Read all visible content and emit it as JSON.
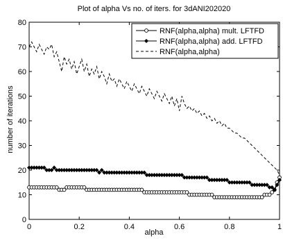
{
  "chart_data": {
    "type": "line",
    "title": "Plot of alpha Vs no. of iters. for 3dANI202020",
    "xlabel": "alpha",
    "ylabel": "number of iterations",
    "xlim": [
      0,
      1
    ],
    "ylim": [
      0,
      80
    ],
    "x_ticks": [
      0,
      0.2,
      0.4,
      0.6,
      0.8,
      1
    ],
    "x_tick_labels": [
      "0",
      "0.2",
      "0.4",
      "0.6",
      "0.8",
      "1"
    ],
    "y_ticks": [
      0,
      10,
      20,
      30,
      40,
      50,
      60,
      70,
      80
    ],
    "y_tick_labels": [
      "0",
      "10",
      "20",
      "30",
      "40",
      "50",
      "60",
      "70",
      "80"
    ],
    "grid": false,
    "legend_position": "top-right",
    "series": [
      {
        "name": "RNF(alpha,alpha) mult. LFTFD",
        "style": "solid",
        "marker": "circle",
        "color": "#000000",
        "x": [
          0,
          0.01,
          0.02,
          0.03,
          0.04,
          0.05,
          0.06,
          0.07,
          0.08,
          0.09,
          0.1,
          0.11,
          0.12,
          0.13,
          0.14,
          0.15,
          0.16,
          0.17,
          0.18,
          0.19,
          0.2,
          0.21,
          0.22,
          0.23,
          0.24,
          0.25,
          0.26,
          0.27,
          0.28,
          0.29,
          0.3,
          0.31,
          0.32,
          0.33,
          0.34,
          0.35,
          0.36,
          0.37,
          0.38,
          0.39,
          0.4,
          0.41,
          0.42,
          0.43,
          0.44,
          0.45,
          0.46,
          0.47,
          0.48,
          0.49,
          0.5,
          0.51,
          0.52,
          0.53,
          0.54,
          0.55,
          0.56,
          0.57,
          0.58,
          0.59,
          0.6,
          0.61,
          0.62,
          0.63,
          0.64,
          0.65,
          0.66,
          0.67,
          0.68,
          0.69,
          0.7,
          0.71,
          0.72,
          0.73,
          0.74,
          0.75,
          0.76,
          0.77,
          0.78,
          0.79,
          0.8,
          0.81,
          0.82,
          0.83,
          0.84,
          0.85,
          0.86,
          0.87,
          0.88,
          0.89,
          0.9,
          0.91,
          0.92,
          0.93,
          0.94,
          0.95,
          0.96,
          0.97,
          0.98,
          0.99,
          1.0
        ],
        "y": [
          13,
          13,
          13,
          13,
          13,
          13,
          13,
          13,
          13,
          13,
          13,
          13,
          12,
          12,
          12,
          13,
          13,
          13,
          13,
          13,
          13,
          13,
          13,
          12,
          12,
          12,
          12,
          12,
          12,
          12,
          12,
          12,
          12,
          12,
          12,
          12,
          12,
          12,
          12,
          12,
          12,
          12,
          12,
          12,
          12,
          12,
          11,
          11,
          11,
          11,
          11,
          11,
          11,
          11,
          11,
          11,
          11,
          11,
          11,
          11,
          11,
          11,
          11,
          11,
          10,
          10,
          10,
          10,
          10,
          10,
          10,
          10,
          10,
          10,
          9,
          9,
          9,
          9,
          9,
          9,
          9,
          9,
          9,
          9,
          9,
          9,
          9,
          9,
          9,
          9,
          9,
          9,
          9,
          9,
          10,
          10,
          10,
          11,
          12,
          15,
          17
        ]
      },
      {
        "name": "RNF(alpha,alpha) add. LFTFD",
        "style": "solid",
        "marker": "diamond",
        "color": "#000000",
        "x": [
          0,
          0.01,
          0.02,
          0.03,
          0.04,
          0.05,
          0.06,
          0.07,
          0.08,
          0.09,
          0.1,
          0.11,
          0.12,
          0.13,
          0.14,
          0.15,
          0.16,
          0.17,
          0.18,
          0.19,
          0.2,
          0.21,
          0.22,
          0.23,
          0.24,
          0.25,
          0.26,
          0.27,
          0.28,
          0.29,
          0.3,
          0.31,
          0.32,
          0.33,
          0.34,
          0.35,
          0.36,
          0.37,
          0.38,
          0.39,
          0.4,
          0.41,
          0.42,
          0.43,
          0.44,
          0.45,
          0.46,
          0.47,
          0.48,
          0.49,
          0.5,
          0.51,
          0.52,
          0.53,
          0.54,
          0.55,
          0.56,
          0.57,
          0.58,
          0.59,
          0.6,
          0.61,
          0.62,
          0.63,
          0.64,
          0.65,
          0.66,
          0.67,
          0.68,
          0.69,
          0.7,
          0.71,
          0.72,
          0.73,
          0.74,
          0.75,
          0.76,
          0.77,
          0.78,
          0.79,
          0.8,
          0.81,
          0.82,
          0.83,
          0.84,
          0.85,
          0.86,
          0.87,
          0.88,
          0.89,
          0.9,
          0.91,
          0.92,
          0.93,
          0.94,
          0.95,
          0.96,
          0.97,
          0.98,
          0.99,
          1.0
        ],
        "y": [
          21,
          21,
          21,
          21,
          21,
          21,
          21,
          20,
          20,
          20,
          21,
          20,
          20,
          20,
          20,
          20,
          20,
          20,
          20,
          20,
          20,
          20,
          20,
          20,
          20,
          20,
          20,
          20,
          19,
          20,
          19,
          19,
          19,
          19,
          19,
          19,
          19,
          19,
          19,
          19,
          19,
          19,
          19,
          19,
          19,
          19,
          19,
          18,
          18,
          18,
          18,
          18,
          18,
          18,
          18,
          18,
          18,
          18,
          18,
          18,
          18,
          18,
          17,
          17,
          17,
          17,
          17,
          17,
          17,
          17,
          17,
          17,
          16,
          16,
          16,
          16,
          16,
          16,
          16,
          16,
          15,
          15,
          15,
          15,
          15,
          15,
          15,
          15,
          15,
          14,
          14,
          14,
          14,
          14,
          14,
          14,
          13,
          13,
          12,
          14,
          16
        ]
      },
      {
        "name": "RNF(alpha,alpha)",
        "style": "dashed",
        "marker": "none",
        "color": "#000000",
        "x": [
          0,
          0.01,
          0.02,
          0.03,
          0.04,
          0.05,
          0.06,
          0.07,
          0.08,
          0.09,
          0.1,
          0.11,
          0.12,
          0.13,
          0.14,
          0.15,
          0.16,
          0.17,
          0.18,
          0.19,
          0.2,
          0.21,
          0.22,
          0.23,
          0.24,
          0.25,
          0.26,
          0.27,
          0.28,
          0.29,
          0.3,
          0.31,
          0.32,
          0.33,
          0.34,
          0.35,
          0.36,
          0.37,
          0.38,
          0.39,
          0.4,
          0.41,
          0.42,
          0.43,
          0.44,
          0.45,
          0.46,
          0.47,
          0.48,
          0.49,
          0.5,
          0.51,
          0.52,
          0.53,
          0.54,
          0.55,
          0.56,
          0.57,
          0.58,
          0.59,
          0.6,
          0.61,
          0.62,
          0.63,
          0.64,
          0.65,
          0.66,
          0.67,
          0.68,
          0.69,
          0.7,
          0.71,
          0.72,
          0.73,
          0.74,
          0.75,
          0.76,
          0.77,
          0.78,
          0.79,
          0.8,
          0.81,
          0.82,
          0.83,
          0.84,
          0.85,
          0.86,
          0.87,
          0.88,
          0.89,
          0.9,
          0.91,
          0.92,
          0.93,
          0.94,
          0.95,
          0.96,
          0.97,
          0.98,
          0.99,
          1.0
        ],
        "y": [
          70,
          72,
          70,
          68,
          71,
          69,
          67,
          70,
          69,
          71,
          66,
          68,
          64,
          60,
          66,
          63,
          65,
          61,
          64,
          59,
          62,
          65,
          60,
          63,
          58,
          61,
          59,
          62,
          57,
          60,
          58,
          55,
          59,
          56,
          57,
          54,
          57,
          55,
          53,
          56,
          54,
          52,
          55,
          53,
          51,
          54,
          52,
          50,
          53,
          51,
          49,
          52,
          50,
          48,
          51,
          49,
          47,
          50,
          46,
          49,
          44,
          50,
          47,
          45,
          46,
          44,
          45,
          43,
          44,
          42,
          43,
          41,
          42,
          40,
          41,
          39,
          40,
          38,
          39,
          37,
          37,
          36,
          35,
          35,
          34,
          33,
          33,
          32,
          31,
          30,
          29,
          28,
          27,
          26,
          25,
          24,
          23,
          22,
          21,
          20,
          18
        ]
      }
    ]
  }
}
